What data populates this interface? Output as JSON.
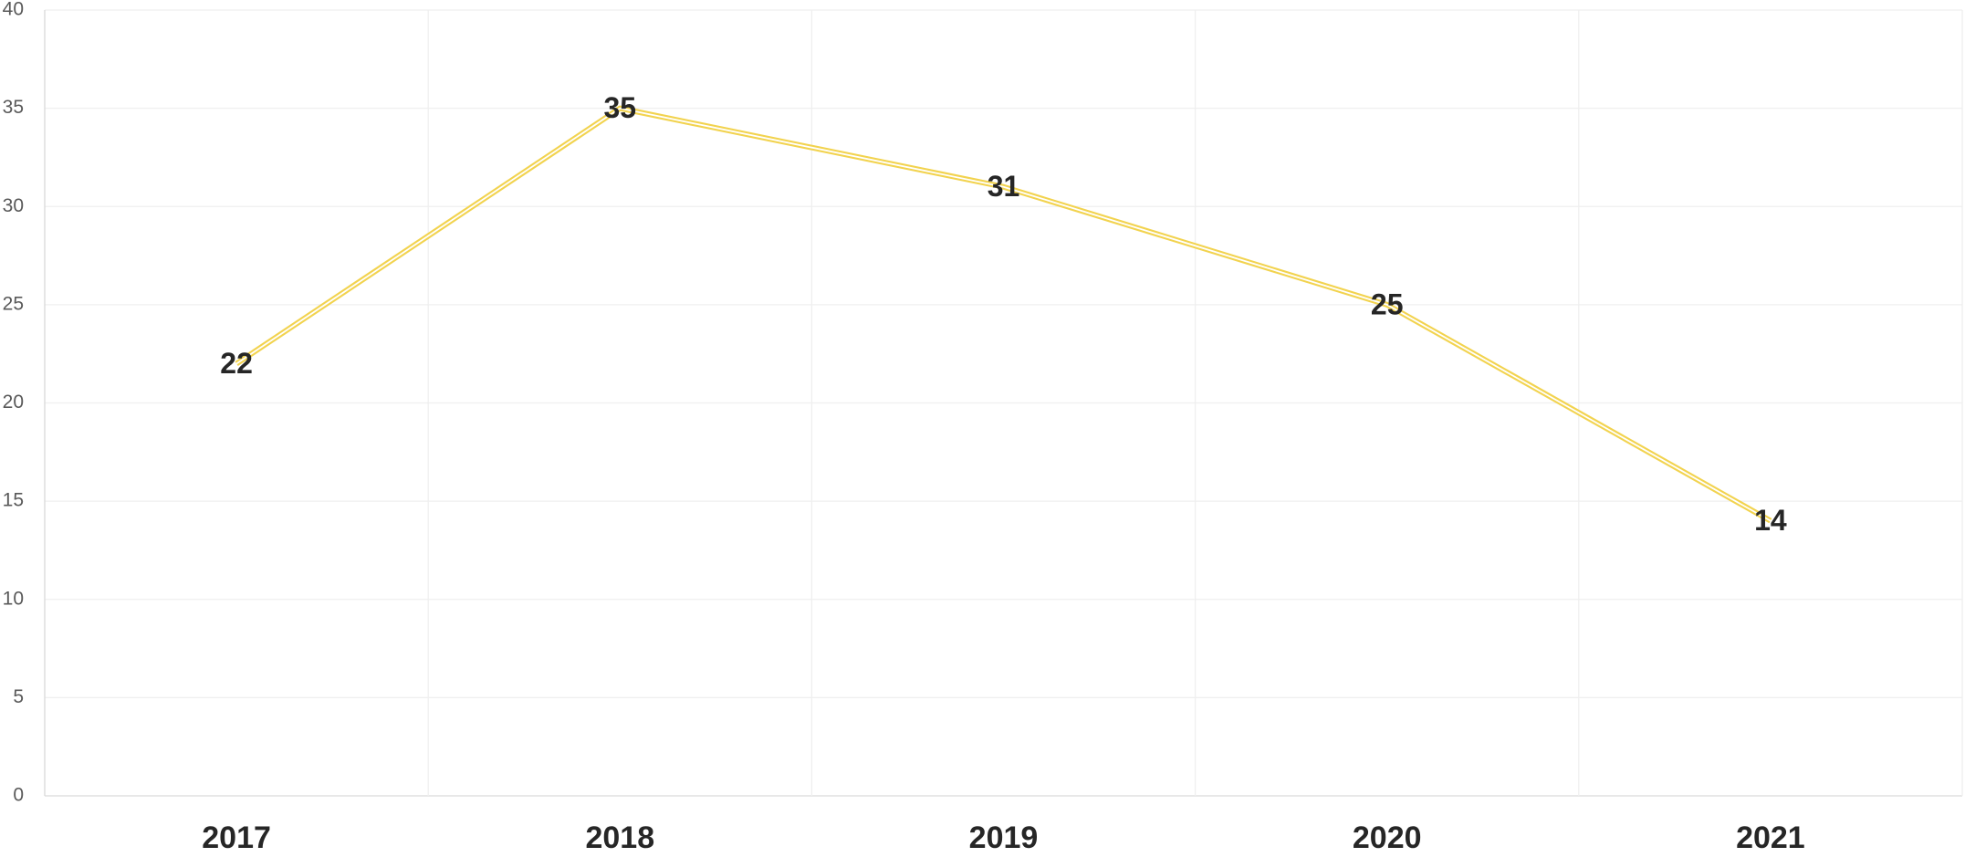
{
  "chart_data": {
    "type": "line",
    "categories": [
      "2017",
      "2018",
      "2019",
      "2020",
      "2021"
    ],
    "series": [
      {
        "color": "#f2d34f",
        "values": [
          22,
          35,
          31,
          25,
          14
        ]
      }
    ],
    "ylim": [
      0,
      40
    ],
    "yticks": [
      0,
      5,
      10,
      15,
      20,
      25,
      30,
      35,
      40
    ],
    "grid": true
  }
}
